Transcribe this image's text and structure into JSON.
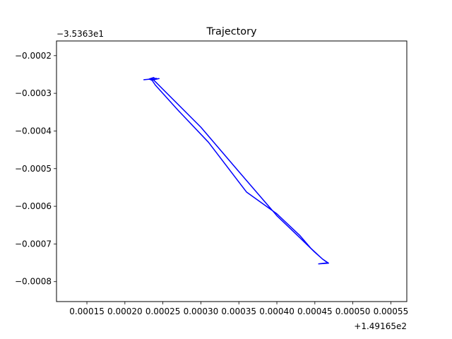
{
  "chart_data": {
    "type": "line",
    "title": "Trajectory",
    "xlabel": "",
    "ylabel": "",
    "x_offset_label": "+1.49165e2",
    "y_offset_label": "−3.5363e1",
    "xlim": [
      0.00011,
      0.000571
    ],
    "ylim": [
      -0.000853,
      -0.000161
    ],
    "x_ticks": [
      {
        "value": 0.00015,
        "label": "0.00015"
      },
      {
        "value": 0.0002,
        "label": "0.00020"
      },
      {
        "value": 0.00025,
        "label": "0.00025"
      },
      {
        "value": 0.0003,
        "label": "0.00030"
      },
      {
        "value": 0.00035,
        "label": "0.00035"
      },
      {
        "value": 0.0004,
        "label": "0.00040"
      },
      {
        "value": 0.00045,
        "label": "0.00045"
      },
      {
        "value": 0.0005,
        "label": "0.00050"
      },
      {
        "value": 0.00055,
        "label": "0.00055"
      }
    ],
    "y_ticks": [
      {
        "value": -0.0002,
        "label": "−0.0002"
      },
      {
        "value": -0.0003,
        "label": "−0.0003"
      },
      {
        "value": -0.0004,
        "label": "−0.0004"
      },
      {
        "value": -0.0005,
        "label": "−0.0005"
      },
      {
        "value": -0.0006,
        "label": "−0.0006"
      },
      {
        "value": -0.0007,
        "label": "−0.0007"
      },
      {
        "value": -0.0008,
        "label": "−0.0008"
      }
    ],
    "grid": false,
    "legend": "none",
    "series": [
      {
        "color": "#0000ff",
        "x": [
          0.000225,
          0.000235,
          0.000245,
          0.00024,
          0.000238,
          0.000232,
          0.000236,
          0.000241,
          0.000238,
          0.0003,
          0.00035,
          0.0004,
          0.00043,
          0.00045,
          0.00046,
          0.000468,
          0.000455,
          0.000467,
          0.00046,
          0.000445,
          0.00043,
          0.0004,
          0.00036,
          0.00031,
          0.00027,
          0.00024,
          0.000236,
          0.000233
        ],
        "y": [
          -0.000264,
          -0.000262,
          -0.000261,
          -0.000263,
          -0.000258,
          -0.000262,
          -0.000265,
          -0.00026,
          -0.000265,
          -0.00039,
          -0.000508,
          -0.000625,
          -0.000683,
          -0.000722,
          -0.00074,
          -0.000751,
          -0.000753,
          -0.00075,
          -0.00074,
          -0.000712,
          -0.000677,
          -0.00062,
          -0.000562,
          -0.00043,
          -0.000345,
          -0.000278,
          -0.000266,
          -0.000263
        ]
      }
    ]
  }
}
